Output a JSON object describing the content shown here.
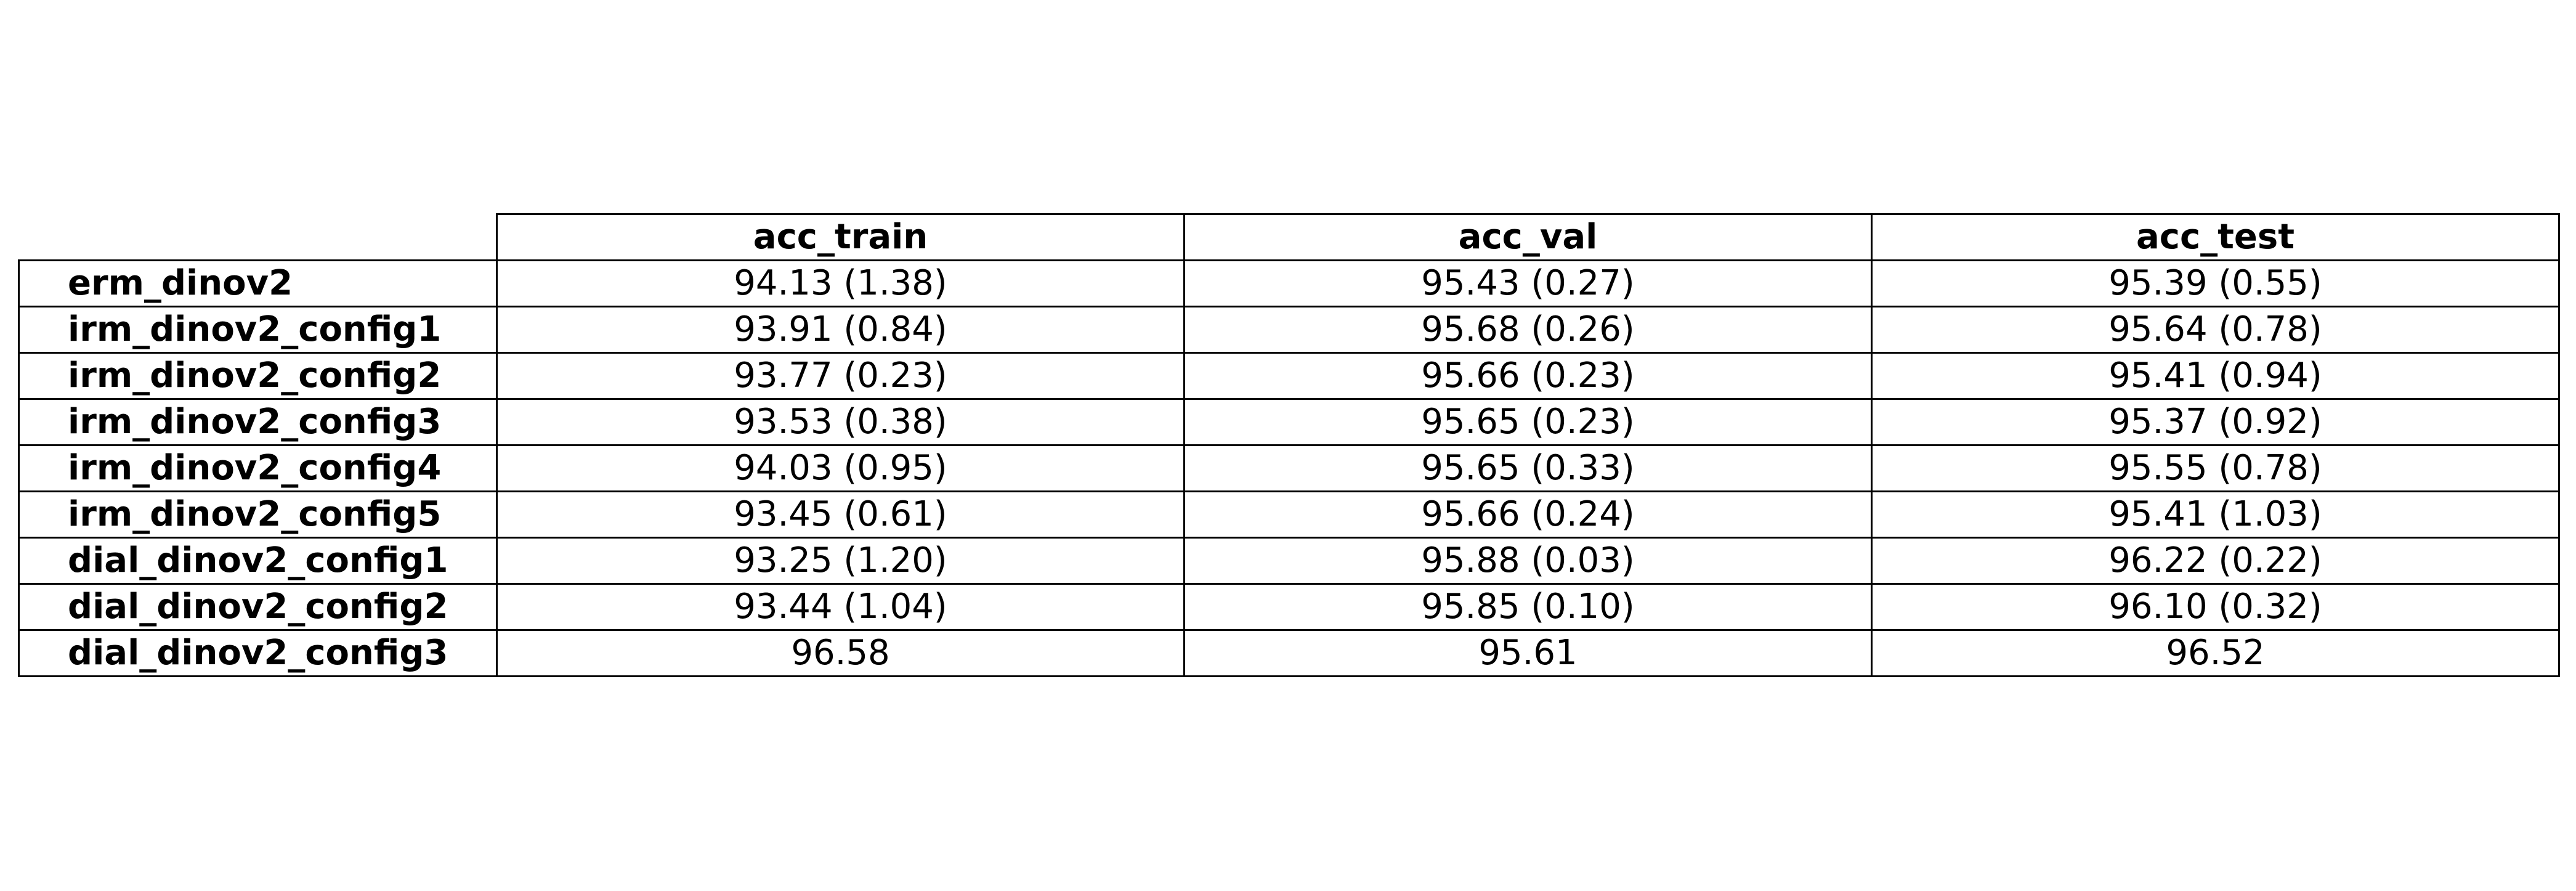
{
  "chart_data": {
    "type": "table",
    "columns": [
      "acc_train",
      "acc_val",
      "acc_test"
    ],
    "rows": [
      {
        "label": "erm_dinov2",
        "cells": [
          "94.13 (1.38)",
          "95.43 (0.27)",
          "95.39 (0.55)"
        ]
      },
      {
        "label": "irm_dinov2_config1",
        "cells": [
          "93.91 (0.84)",
          "95.68 (0.26)",
          "95.64 (0.78)"
        ]
      },
      {
        "label": "irm_dinov2_config2",
        "cells": [
          "93.77 (0.23)",
          "95.66 (0.23)",
          "95.41 (0.94)"
        ]
      },
      {
        "label": "irm_dinov2_config3",
        "cells": [
          "93.53 (0.38)",
          "95.65 (0.23)",
          "95.37 (0.92)"
        ]
      },
      {
        "label": "irm_dinov2_config4",
        "cells": [
          "94.03 (0.95)",
          "95.65 (0.33)",
          "95.55 (0.78)"
        ]
      },
      {
        "label": "irm_dinov2_config5",
        "cells": [
          "93.45 (0.61)",
          "95.66 (0.24)",
          "95.41 (1.03)"
        ]
      },
      {
        "label": "dial_dinov2_config1",
        "cells": [
          "93.25 (1.20)",
          "95.88 (0.03)",
          "96.22 (0.22)"
        ]
      },
      {
        "label": "dial_dinov2_config2",
        "cells": [
          "93.44 (1.04)",
          "95.85 (0.10)",
          "96.10 (0.32)"
        ]
      },
      {
        "label": "dial_dinov2_config3",
        "cells": [
          "96.58",
          "95.61",
          "96.52"
        ]
      }
    ]
  }
}
